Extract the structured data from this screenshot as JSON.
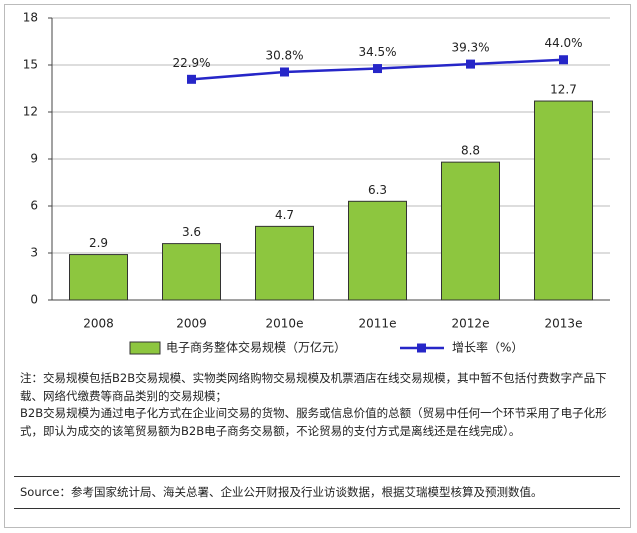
{
  "chart_data": {
    "type": "bar",
    "categories": [
      "2008",
      "2009",
      "2010e",
      "2011e",
      "2012e",
      "2013e"
    ],
    "series": [
      {
        "name": "电子商务整体交易规模（万亿元）",
        "type": "bar",
        "color": "#8dc63f",
        "values": [
          2.9,
          3.6,
          4.7,
          6.3,
          8.8,
          12.7
        ]
      },
      {
        "name": "增长率（%）",
        "type": "line",
        "axis": "y2",
        "color": "#2626c8",
        "values": [
          null,
          22.9,
          30.8,
          34.5,
          39.3,
          44.0
        ],
        "value_labels": [
          null,
          "22.9%",
          "30.8%",
          "34.5%",
          "39.3%",
          "44.0%"
        ]
      }
    ],
    "ylim": [
      0,
      18
    ],
    "yticks": [
      0,
      3,
      6,
      9,
      12,
      15,
      18
    ],
    "y2lim": [
      -215,
      89
    ],
    "grid": true,
    "legend": "bottom",
    "notes": [
      "注：交易规模包括B2B交易规模、实物类网络购物交易规模及机票酒店在线交易规模，其中暂不包括付费数字产品下载、网络代缴费等商品类别的交易规模；",
      "B2B交易规模为通过电子化方式在企业间交易的货物、服务或信息价值的总额（贸易中任何一个环节采用了电子化形式，即认为成交的该笔贸易额为B2B电子商务交易额，不论贸易的支付方式是离线还是在线完成）。"
    ],
    "source": "Source：参考国家统计局、海关总署、企业公开财报及行业访谈数据，根据艾瑞模型核算及预测数值。"
  }
}
